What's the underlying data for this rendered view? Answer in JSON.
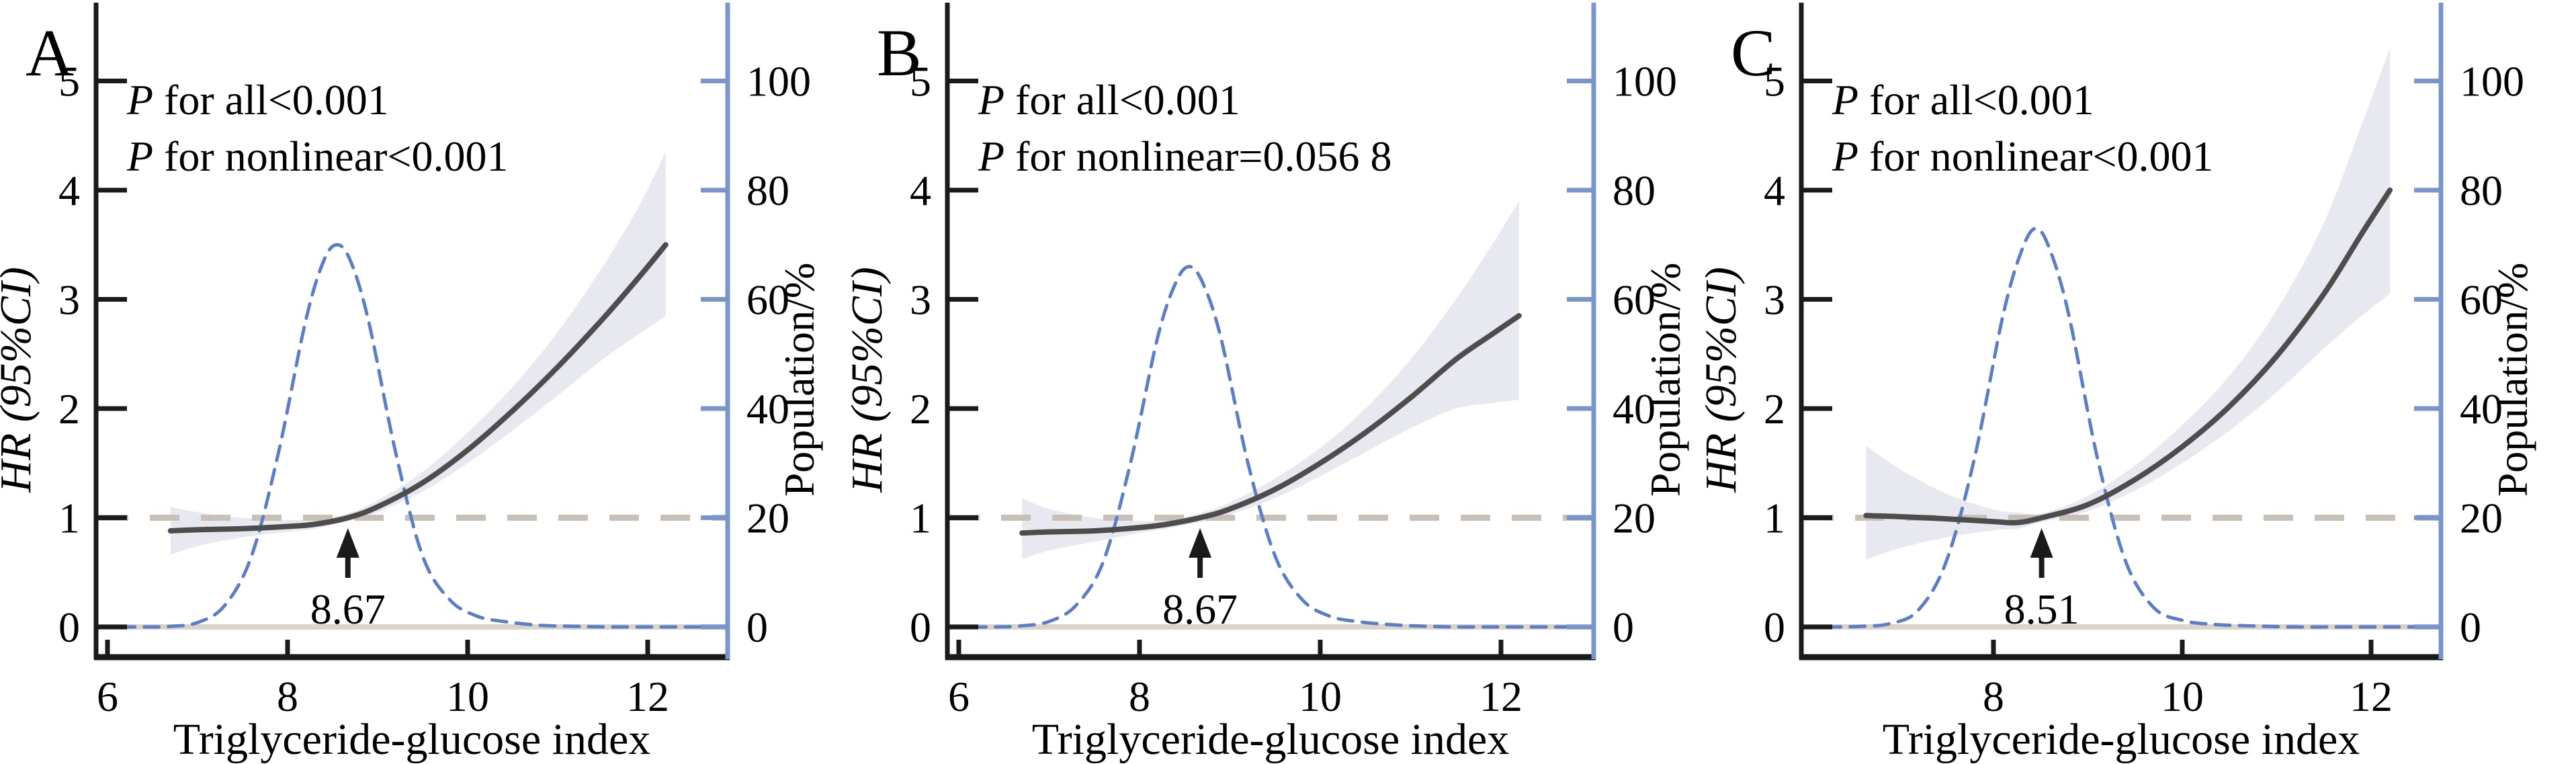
{
  "figure": {
    "xlabel": "Triglyceride-glucose index",
    "ylabel_left": "HR (95%CI)",
    "ylabel_right": "Population/%",
    "y_left_ticks": [
      0,
      1,
      2,
      3,
      4,
      5
    ],
    "y_right_ticks": [
      0,
      20,
      40,
      60,
      80,
      100
    ],
    "colors": {
      "axis_black": "#1a1a1a",
      "axis_right_blue": "#7a94cc",
      "hr_line": "#4d4d4d",
      "ci_band": "#e8e8f0",
      "population_line": "#5b7ec5",
      "ref_dashed_line": "#c8c0b6",
      "zero_line": "#dcd4ca",
      "text": "#000000",
      "arrow": "#1a1a1a"
    }
  },
  "chart_data": [
    {
      "type": "line",
      "panel": "A",
      "p_all": "P for all<0.001",
      "p_nonlinear": "P for nonlinear<0.001",
      "reference_label": "8.67",
      "reference_x": 8.67,
      "x_ticks": [
        6,
        8,
        10,
        12
      ],
      "xlim": [
        5.87,
        12.89
      ],
      "ylim_left": [
        0,
        5.7
      ],
      "ylim_right": [
        0,
        114
      ],
      "hr_series": {
        "x": [
          6.7,
          7.0,
          7.5,
          8.0,
          8.3,
          8.67,
          9.0,
          9.5,
          10.0,
          10.5,
          11.0,
          11.5,
          11.9,
          12.2
        ],
        "hr": [
          0.88,
          0.89,
          0.9,
          0.92,
          0.94,
          1.0,
          1.1,
          1.32,
          1.62,
          1.98,
          2.38,
          2.82,
          3.2,
          3.5
        ],
        "ci_low": [
          0.66,
          0.74,
          0.82,
          0.87,
          0.9,
          0.97,
          1.05,
          1.24,
          1.5,
          1.8,
          2.12,
          2.45,
          2.68,
          2.85
        ],
        "ci_high": [
          1.1,
          1.05,
          1.0,
          0.98,
          0.99,
          1.04,
          1.16,
          1.42,
          1.78,
          2.2,
          2.7,
          3.3,
          3.85,
          4.35
        ]
      },
      "population_series": {
        "x": [
          5.87,
          6.4,
          6.7,
          7.0,
          7.3,
          7.6,
          7.9,
          8.2,
          8.4,
          8.55,
          8.7,
          8.9,
          9.2,
          9.5,
          9.8,
          10.1,
          10.4,
          10.8,
          11.2,
          11.6,
          12.2,
          12.89
        ],
        "pct": [
          0,
          0,
          0.1,
          0.8,
          3.9,
          13,
          32,
          56,
          67,
          70,
          67,
          56,
          32,
          13,
          5,
          2,
          1,
          0.3,
          0.1,
          0,
          0,
          0
        ]
      }
    },
    {
      "type": "line",
      "panel": "B",
      "p_all": "P for all<0.001",
      "p_nonlinear": "P for nonlinear=0.056 8",
      "reference_label": "8.67",
      "reference_x": 8.67,
      "x_ticks": [
        6,
        8,
        10,
        12
      ],
      "xlim": [
        5.87,
        12.89
      ],
      "ylim_left": [
        0,
        5.7
      ],
      "ylim_right": [
        0,
        114
      ],
      "hr_series": {
        "x": [
          6.7,
          7.0,
          7.5,
          8.0,
          8.3,
          8.67,
          9.0,
          9.5,
          10.0,
          10.5,
          11.0,
          11.5,
          11.9,
          12.2
        ],
        "hr": [
          0.86,
          0.87,
          0.88,
          0.91,
          0.94,
          1.0,
          1.08,
          1.26,
          1.5,
          1.78,
          2.1,
          2.45,
          2.68,
          2.85
        ],
        "ci_low": [
          0.62,
          0.7,
          0.78,
          0.86,
          0.9,
          0.96,
          1.03,
          1.18,
          1.38,
          1.6,
          1.82,
          2.0,
          2.05,
          2.08
        ],
        "ci_high": [
          1.18,
          1.08,
          1.0,
          0.97,
          0.98,
          1.04,
          1.14,
          1.36,
          1.64,
          2.0,
          2.45,
          3.0,
          3.5,
          3.9
        ]
      },
      "population_series": {
        "x": [
          5.87,
          6.4,
          6.7,
          7.0,
          7.3,
          7.6,
          7.9,
          8.2,
          8.4,
          8.55,
          8.7,
          8.9,
          9.2,
          9.5,
          9.8,
          10.1,
          10.4,
          10.8,
          11.2,
          11.6,
          12.2,
          12.89
        ],
        "pct": [
          0,
          0,
          0.2,
          1.0,
          4,
          12,
          30,
          53,
          63,
          66,
          63,
          53,
          30,
          13,
          5,
          2,
          1,
          0.4,
          0.1,
          0,
          0,
          0
        ]
      }
    },
    {
      "type": "line",
      "panel": "C",
      "p_all": "P for all<0.001",
      "p_nonlinear": "P for nonlinear<0.001",
      "reference_label": "8.51",
      "reference_x": 8.51,
      "x_ticks": [
        8,
        10,
        12
      ],
      "xlim": [
        5.97,
        12.75
      ],
      "ylim_left": [
        0,
        5.7
      ],
      "ylim_right": [
        0,
        114
      ],
      "hr_series": {
        "x": [
          6.65,
          7.0,
          7.5,
          8.0,
          8.25,
          8.51,
          9.0,
          9.5,
          10.0,
          10.5,
          11.0,
          11.5,
          11.9,
          12.2
        ],
        "hr": [
          1.02,
          1.01,
          0.99,
          0.965,
          0.955,
          1.0,
          1.12,
          1.35,
          1.65,
          2.02,
          2.48,
          3.05,
          3.6,
          4.0
        ],
        "ci_low": [
          0.62,
          0.72,
          0.82,
          0.885,
          0.9,
          0.96,
          1.06,
          1.25,
          1.5,
          1.8,
          2.15,
          2.55,
          2.85,
          3.05
        ],
        "ci_high": [
          1.66,
          1.45,
          1.22,
          1.075,
          1.05,
          1.04,
          1.2,
          1.48,
          1.85,
          2.3,
          2.9,
          3.7,
          4.6,
          5.3
        ]
      },
      "population_series": {
        "x": [
          5.97,
          6.3,
          6.6,
          6.9,
          7.2,
          7.5,
          7.8,
          8.1,
          8.3,
          8.45,
          8.6,
          8.8,
          9.1,
          9.4,
          9.7,
          10.0,
          10.3,
          10.7,
          11.2,
          11.8,
          12.75
        ],
        "pct": [
          0,
          0,
          0.1,
          0.6,
          3,
          12,
          31,
          57,
          69,
          73,
          69,
          57,
          31,
          12,
          3.5,
          1.2,
          0.5,
          0.2,
          0,
          0,
          0
        ]
      }
    }
  ]
}
